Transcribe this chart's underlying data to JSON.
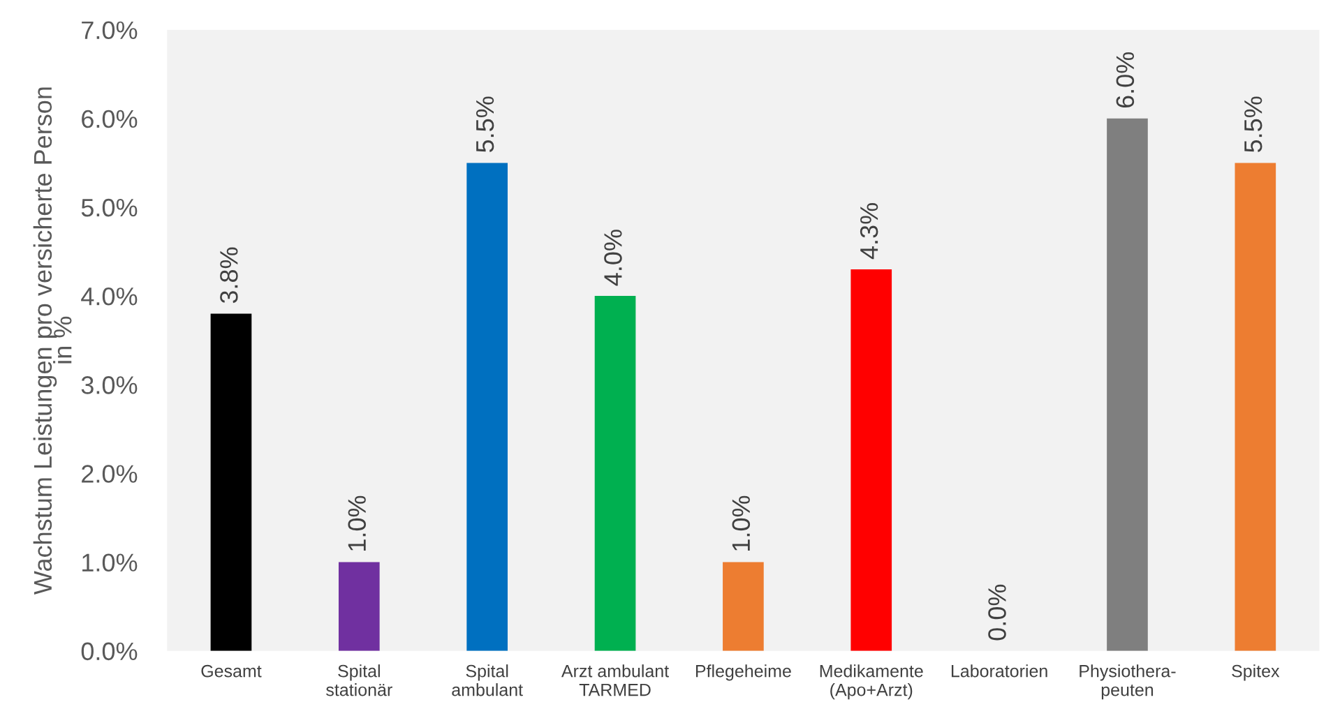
{
  "chart_data": {
    "type": "bar",
    "ylabel": "Wachstum Leistungen pro versicherte Person\nin %",
    "categories": [
      "Gesamt",
      "Spital\nstationär",
      "Spital\nambulant",
      "Arzt ambulant\nTARMED",
      "Pflegeheime",
      "Medikamente\n(Apo+Arzt)",
      "Laboratorien",
      "Physiothera-\npeuten",
      "Spitex"
    ],
    "values": [
      3.8,
      1.0,
      5.5,
      4.0,
      1.0,
      4.3,
      0.0,
      6.0,
      5.5
    ],
    "colors": [
      "#000000",
      "#7030a0",
      "#0070c0",
      "#00b050",
      "#ed7d31",
      "#ff0000",
      "#a5a5a5",
      "#7f7f7f",
      "#ed7d31"
    ],
    "value_labels": [
      "3.8%",
      "1.0%",
      "5.5%",
      "4.0%",
      "1.0%",
      "4.3%",
      "0.0%",
      "6.0%",
      "5.5%"
    ],
    "ylim": [
      0,
      7
    ],
    "yticks": [
      {
        "value": 0,
        "label": "0.0%"
      },
      {
        "value": 1,
        "label": "1.0%"
      },
      {
        "value": 2,
        "label": "2.0%"
      },
      {
        "value": 3,
        "label": "3.0%"
      },
      {
        "value": 4,
        "label": "4.0%"
      },
      {
        "value": 5,
        "label": "5.0%"
      },
      {
        "value": 6,
        "label": "6.0%"
      },
      {
        "value": 7,
        "label": "7.0%"
      }
    ],
    "grid": false,
    "legend": false
  }
}
